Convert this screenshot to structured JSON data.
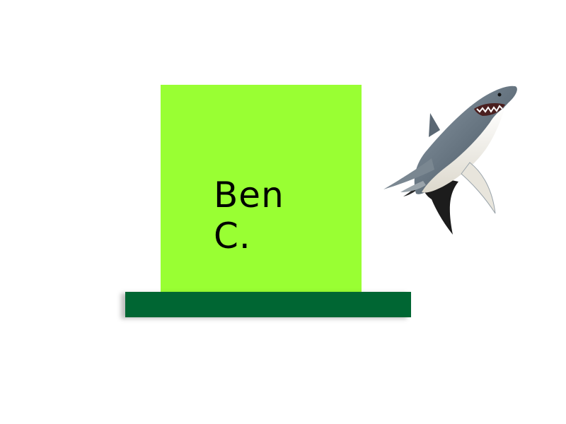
{
  "card": {
    "name_line1": "Ben",
    "name_line2": "C.",
    "card_color": "#99ff33",
    "text_color": "#000000"
  },
  "base": {
    "color": "#006633"
  },
  "shark": {
    "icon": "shark-icon",
    "body_color": "#6f7d88",
    "belly_color": "#f2f0ea",
    "fin_color": "#1c1c1c"
  }
}
